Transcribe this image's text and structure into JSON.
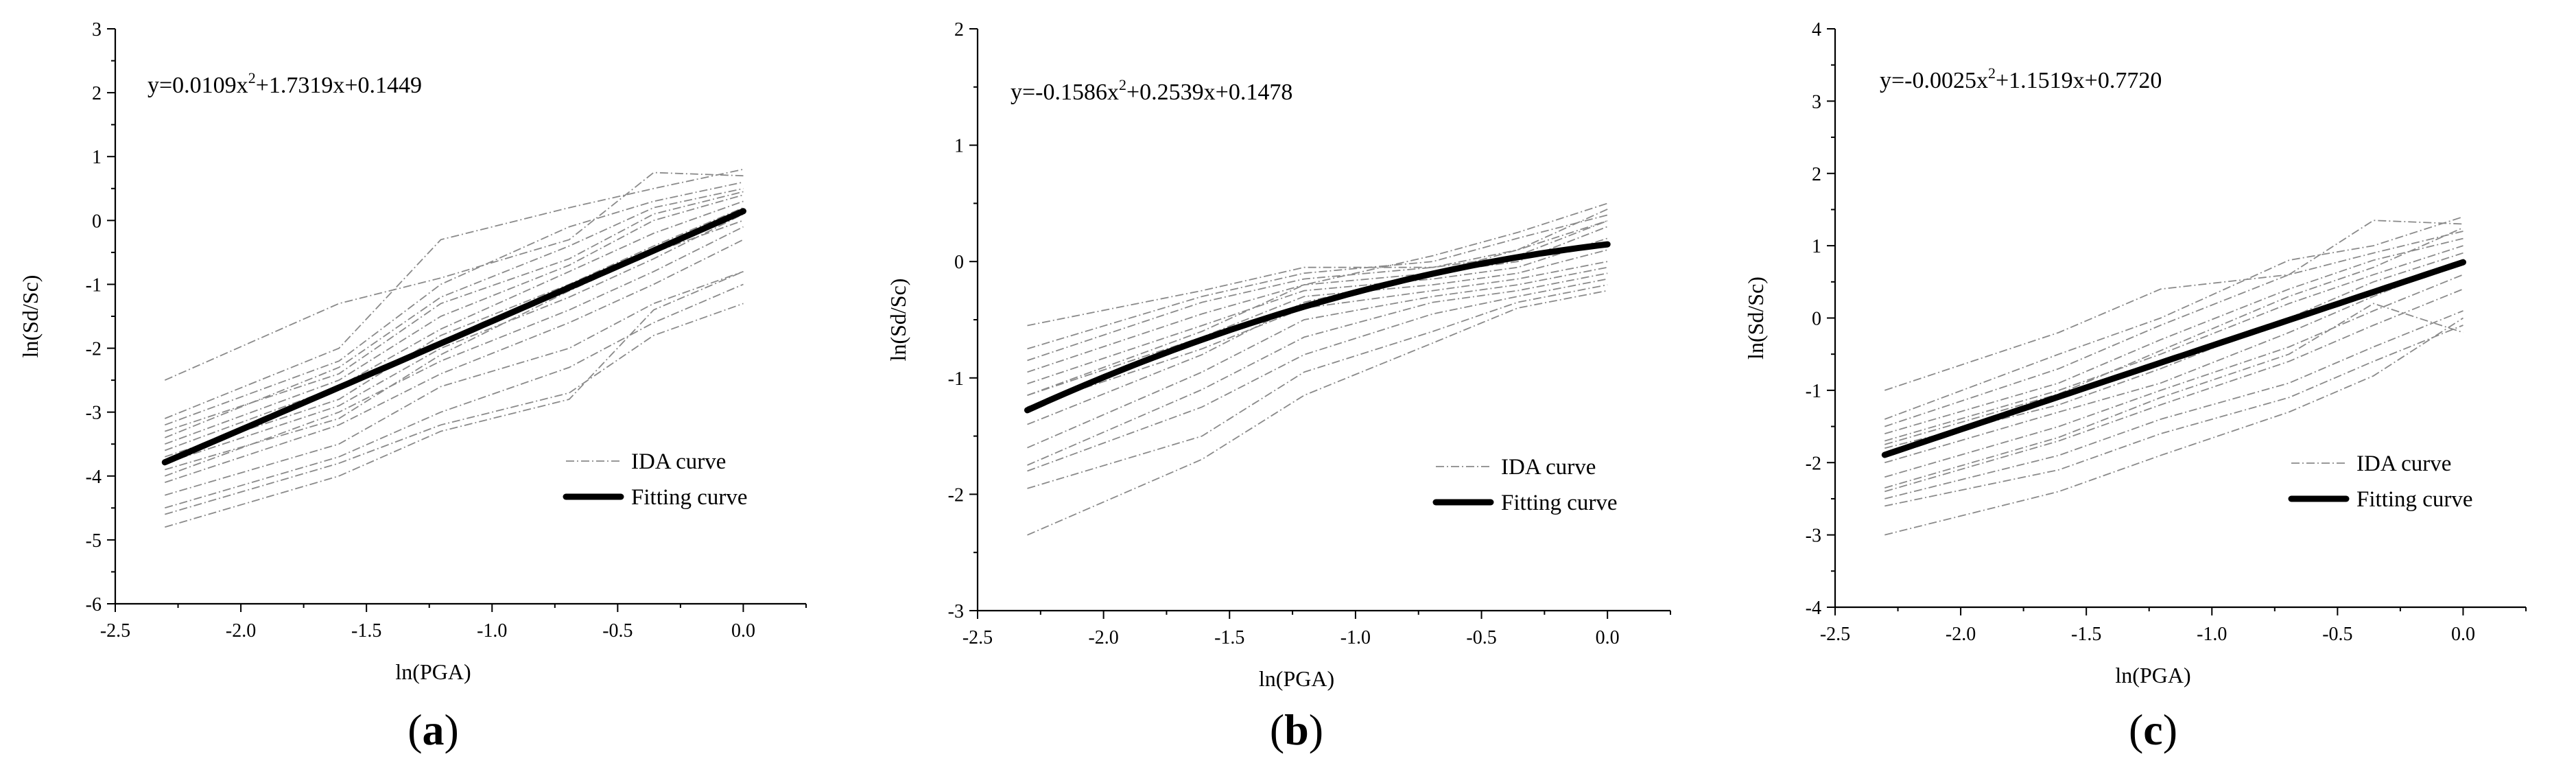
{
  "figure": {
    "captions": [
      "(a)",
      "(b)",
      "(c)"
    ]
  },
  "chart_data": [
    {
      "type": "line",
      "panel": "a",
      "caption": "(a)",
      "caption_open": "(",
      "caption_letter": "a",
      "caption_close": ")",
      "equation": "y=0.0109x2+1.7319x+0.1449",
      "equation_parts": {
        "lead": "y=0.0109x",
        "sup": "2",
        "tail": "+1.7319x+0.1449"
      },
      "xlabel": "ln(PGA)",
      "ylabel": "ln(Sd/Sc)",
      "xlim": [
        -2.5,
        0.25
      ],
      "ylim": [
        -6,
        3
      ],
      "xticks": [
        -2.5,
        -2.0,
        -1.5,
        -1.0,
        -0.5,
        0.0
      ],
      "xtick_labels": [
        "-2.5",
        "-2.0",
        "-1.5",
        "-1.0",
        "-0.5",
        "0.0"
      ],
      "yticks": [
        -6,
        -5,
        -4,
        -3,
        -2,
        -1,
        0,
        1,
        2,
        3
      ],
      "ytick_labels": [
        "-6",
        "-5",
        "-4",
        "-3",
        "-2",
        "-1",
        "0",
        "1",
        "2",
        "3"
      ],
      "legend": [
        "IDA curve",
        "Fitting curve"
      ],
      "legend_position": "lower-right",
      "fit_coeffs": [
        0.0109,
        1.7319,
        0.1449
      ],
      "x": [
        -2.3026,
        -1.6094,
        -1.204,
        -0.6931,
        -0.3567,
        0.0
      ],
      "series": [
        {
          "name": "IDA curve",
          "values": [
            -2.5,
            -1.3,
            -0.9,
            -0.3,
            0.75,
            0.7
          ]
        },
        {
          "name": "IDA curve",
          "values": [
            -3.1,
            -2.0,
            -0.3,
            0.2,
            0.5,
            0.8
          ]
        },
        {
          "name": "IDA curve",
          "values": [
            -3.2,
            -2.2,
            -1.0,
            -0.1,
            0.3,
            0.6
          ]
        },
        {
          "name": "IDA curve",
          "values": [
            -3.4,
            -2.3,
            -1.2,
            -0.4,
            0.2,
            0.5
          ]
        },
        {
          "name": "IDA curve",
          "values": [
            -3.5,
            -2.5,
            -1.5,
            -0.7,
            0.0,
            0.4
          ]
        },
        {
          "name": "IDA curve",
          "values": [
            -3.6,
            -2.6,
            -1.7,
            -0.8,
            -0.2,
            0.3
          ]
        },
        {
          "name": "IDA curve",
          "values": [
            -3.7,
            -2.8,
            -1.8,
            -1.0,
            -0.4,
            0.2
          ]
        },
        {
          "name": "IDA curve",
          "values": [
            -3.8,
            -2.9,
            -2.0,
            -1.2,
            -0.6,
            0.1
          ]
        },
        {
          "name": "IDA curve",
          "values": [
            -4.0,
            -3.0,
            -2.2,
            -1.4,
            -0.8,
            -0.1
          ]
        },
        {
          "name": "IDA curve",
          "values": [
            -4.1,
            -3.2,
            -2.4,
            -1.6,
            -1.0,
            -0.3
          ]
        },
        {
          "name": "IDA curve",
          "values": [
            -4.3,
            -3.5,
            -2.6,
            -2.0,
            -1.3,
            -0.8
          ]
        },
        {
          "name": "IDA curve",
          "values": [
            -4.5,
            -3.7,
            -3.0,
            -2.3,
            -1.6,
            -1.0
          ]
        },
        {
          "name": "IDA curve",
          "values": [
            -4.6,
            -3.8,
            -3.2,
            -2.7,
            -1.8,
            -1.3
          ]
        },
        {
          "name": "IDA curve",
          "values": [
            -4.8,
            -4.0,
            -3.3,
            -2.8,
            -1.4,
            -0.8
          ]
        },
        {
          "name": "IDA curve",
          "values": [
            -3.3,
            -2.4,
            -1.3,
            -0.6,
            0.1,
            0.45
          ]
        },
        {
          "name": "IDA curve",
          "values": [
            -3.9,
            -3.1,
            -2.1,
            -1.1,
            -0.5,
            0.0
          ]
        }
      ]
    },
    {
      "type": "line",
      "panel": "b",
      "caption": "(b)",
      "caption_open": "(",
      "caption_letter": "b",
      "caption_close": ")",
      "equation": "y=-0.1586x2+0.2539x+0.1478",
      "equation_parts": {
        "lead": "y=-0.1586x",
        "sup": "2",
        "tail": "+0.2539x+0.1478"
      },
      "xlabel": "ln(PGA)",
      "ylabel": "ln(Sd/Sc)",
      "xlim": [
        -2.5,
        0.25
      ],
      "ylim": [
        -3,
        2
      ],
      "xticks": [
        -2.5,
        -2.0,
        -1.5,
        -1.0,
        -0.5,
        0.0
      ],
      "xtick_labels": [
        "-2.5",
        "-2.0",
        "-1.5",
        "-1.0",
        "-0.5",
        "0.0"
      ],
      "yticks": [
        -3,
        -2,
        -1,
        0,
        1,
        2
      ],
      "ytick_labels": [
        "-3",
        "-2",
        "-1",
        "0",
        "1",
        "2"
      ],
      "legend": [
        "IDA curve",
        "Fitting curve"
      ],
      "legend_position": "lower-right",
      "fit_coeffs": [
        -0.1586,
        0.2539,
        0.1478
      ],
      "x": [
        -2.3026,
        -1.6094,
        -1.204,
        -0.6931,
        -0.3567,
        0.0
      ],
      "series": [
        {
          "name": "IDA curve",
          "values": [
            -0.55,
            -0.25,
            -0.05,
            -0.05,
            0.1,
            0.45
          ]
        },
        {
          "name": "IDA curve",
          "values": [
            -0.75,
            -0.3,
            -0.1,
            0.0,
            0.2,
            0.4
          ]
        },
        {
          "name": "IDA curve",
          "values": [
            -0.85,
            -0.35,
            -0.15,
            -0.05,
            0.05,
            0.35
          ]
        },
        {
          "name": "IDA curve",
          "values": [
            -0.95,
            -0.45,
            -0.2,
            -0.1,
            0.0,
            0.3
          ]
        },
        {
          "name": "IDA curve",
          "values": [
            -1.05,
            -0.55,
            -0.25,
            -0.15,
            -0.05,
            0.2
          ]
        },
        {
          "name": "IDA curve",
          "values": [
            -1.15,
            -0.65,
            -0.3,
            -0.2,
            -0.1,
            0.1
          ]
        },
        {
          "name": "IDA curve",
          "values": [
            -1.25,
            -0.75,
            -0.4,
            -0.25,
            -0.15,
            0.0
          ]
        },
        {
          "name": "IDA curve",
          "values": [
            -1.6,
            -0.95,
            -0.5,
            -0.3,
            -0.2,
            -0.05
          ]
        },
        {
          "name": "IDA curve",
          "values": [
            -1.75,
            -1.1,
            -0.65,
            -0.35,
            -0.25,
            -0.1
          ]
        },
        {
          "name": "IDA curve",
          "values": [
            -1.8,
            -1.25,
            -0.8,
            -0.45,
            -0.3,
            -0.15
          ]
        },
        {
          "name": "IDA curve",
          "values": [
            -1.95,
            -1.5,
            -0.95,
            -0.6,
            -0.35,
            -0.2
          ]
        },
        {
          "name": "IDA curve",
          "values": [
            -2.35,
            -1.7,
            -1.15,
            -0.7,
            -0.4,
            -0.25
          ]
        },
        {
          "name": "IDA curve",
          "values": [
            -1.15,
            -0.6,
            -0.2,
            0.05,
            0.25,
            0.5
          ]
        },
        {
          "name": "IDA curve",
          "values": [
            -1.4,
            -0.8,
            -0.35,
            -0.1,
            0.1,
            0.35
          ]
        }
      ]
    },
    {
      "type": "line",
      "panel": "c",
      "caption": "(c)",
      "caption_open": "(",
      "caption_letter": "c",
      "caption_close": ")",
      "equation": "y=-0.0025x2+1.1519x+0.7720",
      "equation_parts": {
        "lead": "y=-0.0025x",
        "sup": "2",
        "tail": "+1.1519x+0.7720"
      },
      "xlabel": "ln(PGA)",
      "ylabel": "ln(Sd/Sc)",
      "xlim": [
        -2.5,
        0.25
      ],
      "ylim": [
        -4,
        4
      ],
      "xticks": [
        -2.5,
        -2.0,
        -1.5,
        -1.0,
        -0.5,
        0.0
      ],
      "xtick_labels": [
        "-2.5",
        "-2.0",
        "-1.5",
        "-1.0",
        "-0.5",
        "0.0"
      ],
      "yticks": [
        -4,
        -3,
        -2,
        -1,
        0,
        1,
        2,
        3,
        4
      ],
      "ytick_labels": [
        "-4",
        "-3",
        "-2",
        "-1",
        "0",
        "1",
        "2",
        "3",
        "4"
      ],
      "legend": [
        "IDA curve",
        "Fitting curve"
      ],
      "legend_position": "lower-right",
      "fit_coeffs": [
        -0.0025,
        1.1519,
        0.772
      ],
      "x": [
        -2.3026,
        -1.6094,
        -1.204,
        -0.6931,
        -0.3567,
        0.0
      ],
      "series": [
        {
          "name": "IDA curve",
          "values": [
            -1.0,
            -0.2,
            0.4,
            0.6,
            1.35,
            1.3
          ]
        },
        {
          "name": "IDA curve",
          "values": [
            -1.4,
            -0.5,
            0.0,
            0.8,
            1.0,
            1.4
          ]
        },
        {
          "name": "IDA curve",
          "values": [
            -1.5,
            -0.7,
            -0.1,
            0.6,
            0.9,
            1.2
          ]
        },
        {
          "name": "IDA curve",
          "values": [
            -1.6,
            -0.9,
            -0.3,
            0.4,
            0.8,
            1.1
          ]
        },
        {
          "name": "IDA curve",
          "values": [
            -1.7,
            -1.0,
            -0.5,
            0.2,
            0.6,
            1.0
          ]
        },
        {
          "name": "IDA curve",
          "values": [
            -1.8,
            -1.2,
            -0.7,
            0.0,
            0.5,
            0.9
          ]
        },
        {
          "name": "IDA curve",
          "values": [
            -2.0,
            -1.3,
            -0.9,
            -0.2,
            0.3,
            0.8
          ]
        },
        {
          "name": "IDA curve",
          "values": [
            -2.2,
            -1.5,
            -1.0,
            -0.4,
            0.1,
            0.6
          ]
        },
        {
          "name": "IDA curve",
          "values": [
            -2.4,
            -1.7,
            -1.2,
            -0.6,
            -0.1,
            0.4
          ]
        },
        {
          "name": "IDA curve",
          "values": [
            -2.5,
            -1.9,
            -1.4,
            -0.9,
            -0.4,
            0.1
          ]
        },
        {
          "name": "IDA curve",
          "values": [
            -2.6,
            -2.1,
            -1.6,
            -1.1,
            -0.6,
            -0.1
          ]
        },
        {
          "name": "IDA curve",
          "values": [
            -3.0,
            -2.4,
            -1.9,
            -1.3,
            -0.8,
            0.0
          ]
        },
        {
          "name": "IDA curve",
          "values": [
            -2.35,
            -1.65,
            -1.1,
            -0.5,
            0.2,
            -0.2
          ]
        },
        {
          "name": "IDA curve",
          "values": [
            -1.75,
            -1.05,
            -0.45,
            0.3,
            0.7,
            1.25
          ]
        }
      ]
    }
  ]
}
